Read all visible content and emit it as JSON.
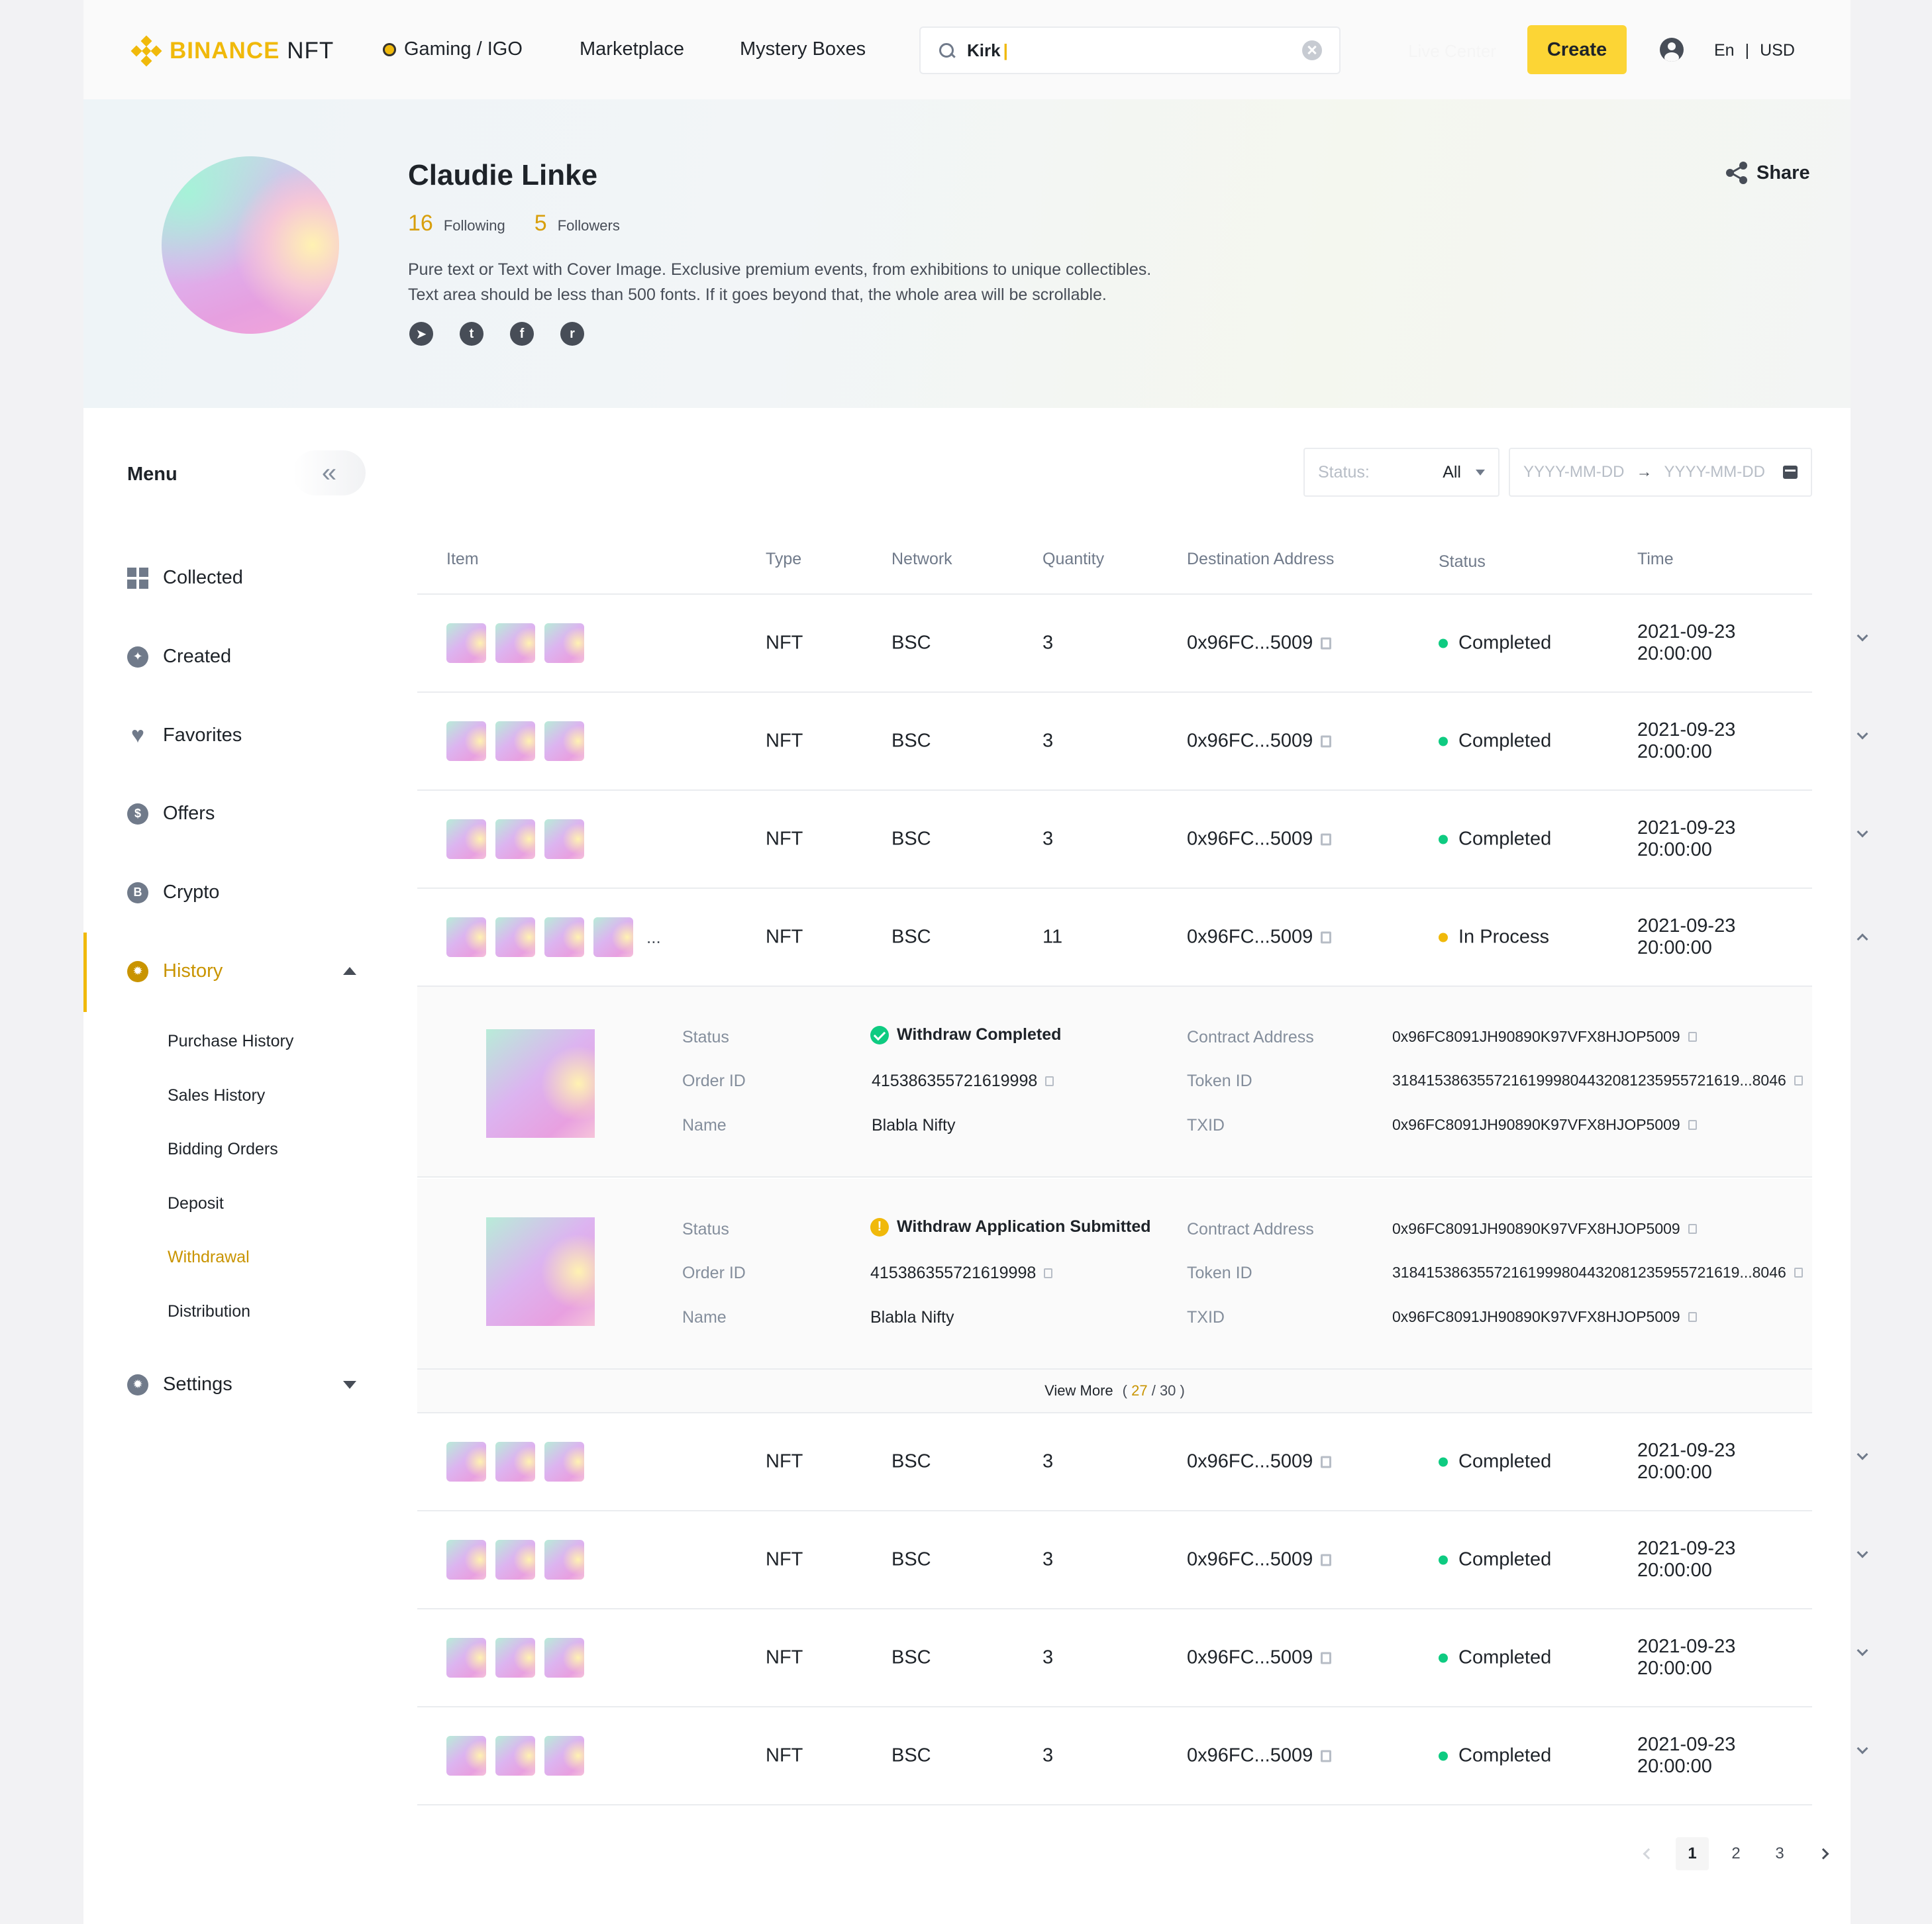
{
  "header": {
    "logo_text": "BINANCE",
    "logo_suffix": "NFT",
    "nav": {
      "gaming": "Gaming / IGO",
      "marketplace": "Marketplace",
      "mystery": "Mystery Boxes"
    },
    "search_value": "Kirk",
    "ghost_link": "Live Center",
    "create_label": "Create",
    "lang": "En",
    "lang_sep": "|",
    "currency": "USD"
  },
  "profile": {
    "name": "Claudie Linke",
    "following_count": "16",
    "following_label": "Following",
    "followers_count": "5",
    "followers_label": "Followers",
    "bio_line1": "Pure text or Text with Cover Image. Exclusive premium events, from exhibitions to unique collectibles.",
    "bio_line2": "Text area should be less than 500 fonts. If it goes beyond that, the whole area will be scrollable.",
    "share_label": "Share",
    "socials": [
      "telegram",
      "twitter",
      "facebook",
      "reddit"
    ]
  },
  "sidebar": {
    "title": "Menu",
    "items": {
      "collected": "Collected",
      "created": "Created",
      "favorites": "Favorites",
      "offers": "Offers",
      "crypto": "Crypto",
      "history": "History",
      "settings": "Settings"
    },
    "history_sub": {
      "purchase": "Purchase History",
      "sales": "Sales History",
      "bidding": "Bidding Orders",
      "deposit": "Deposit",
      "withdrawal": "Withdrawal",
      "distribution": "Distribution"
    }
  },
  "filters": {
    "status_label": "Status:",
    "status_value": "All",
    "date_from_placeholder": "YYYY-MM-DD",
    "date_to_placeholder": "YYYY-MM-DD"
  },
  "table": {
    "headers": {
      "item": "Item",
      "type": "Type",
      "network": "Network",
      "quantity": "Quantity",
      "address": "Destination Address",
      "status": "Status",
      "time": "Time"
    },
    "rows": [
      {
        "type": "NFT",
        "network": "BSC",
        "quantity": "3",
        "address": "0x96FC...5009",
        "status": "Completed",
        "time": "2021-09-23 20:00:00"
      },
      {
        "type": "NFT",
        "network": "BSC",
        "quantity": "3",
        "address": "0x96FC...5009",
        "status": "Completed",
        "time": "2021-09-23 20:00:00"
      },
      {
        "type": "NFT",
        "network": "BSC",
        "quantity": "3",
        "address": "0x96FC...5009",
        "status": "Completed",
        "time": "2021-09-23 20:00:00"
      },
      {
        "type": "NFT",
        "network": "BSC",
        "quantity": "11",
        "address": "0x96FC...5009",
        "status": "In Process",
        "time": "2021-09-23 20:00:00",
        "ellipsis": "..."
      },
      {
        "type": "NFT",
        "network": "BSC",
        "quantity": "3",
        "address": "0x96FC...5009",
        "status": "Completed",
        "time": "2021-09-23 20:00:00"
      },
      {
        "type": "NFT",
        "network": "BSC",
        "quantity": "3",
        "address": "0x96FC...5009",
        "status": "Completed",
        "time": "2021-09-23 20:00:00"
      },
      {
        "type": "NFT",
        "network": "BSC",
        "quantity": "3",
        "address": "0x96FC...5009",
        "status": "Completed",
        "time": "2021-09-23 20:00:00"
      },
      {
        "type": "NFT",
        "network": "BSC",
        "quantity": "3",
        "address": "0x96FC...5009",
        "status": "Completed",
        "time": "2021-09-23 20:00:00"
      }
    ],
    "detail_labels": {
      "status": "Status",
      "order_id": "Order ID",
      "name": "Name",
      "contract": "Contract Address",
      "token": "Token ID",
      "txid": "TXID"
    },
    "details": [
      {
        "status": "Withdraw Completed",
        "order_id": "415386355721619998",
        "name": "Blabla Nifty",
        "contract": "0x96FC8091JH90890K97VFX8HJOP5009",
        "token": "31841538635572161999804432081235955721619...8046",
        "txid": "0x96FC8091JH90890K97VFX8HJOP5009"
      },
      {
        "status": "Withdraw Application Submitted",
        "order_id": "415386355721619998",
        "name": "Blabla Nifty",
        "contract": "0x96FC8091JH90890K97VFX8HJOP5009",
        "token": "31841538635572161999804432081235955721619...8046",
        "txid": "0x96FC8091JH90890K97VFX8HJOP5009"
      }
    ],
    "view_more": {
      "label": "View More",
      "shown": "27",
      "total": "30"
    }
  },
  "pagination": {
    "pages": [
      "1",
      "2",
      "3"
    ],
    "current": "1"
  },
  "colors": {
    "brand": "#f0b90b",
    "button": "#fcd535",
    "success": "#0ecb81",
    "active_text": "#c99400"
  }
}
